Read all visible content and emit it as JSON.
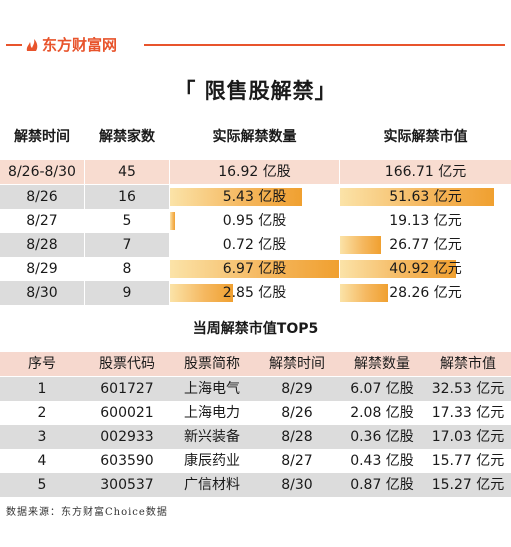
{
  "header": {
    "logo_text": "东方财富网",
    "brand_color": "#e8542c"
  },
  "title": "「 限售股解禁」",
  "table1": {
    "headers": [
      "解禁时间",
      "解禁家数",
      "实际解禁数量",
      "实际解禁市值"
    ],
    "summary": {
      "date": "8/26-8/30",
      "count": "45",
      "quantity": "16.92 亿股",
      "value": "166.71 亿元"
    },
    "rows": [
      {
        "date": "8/26",
        "count": "16",
        "quantity": "5.43 亿股",
        "quantity_level": 0.78,
        "value": "51.63 亿元",
        "value_level": 0.9
      },
      {
        "date": "8/27",
        "count": "5",
        "quantity": "0.95 亿股",
        "quantity_level": 0.03,
        "value": "19.13 亿元",
        "value_level": 0.0
      },
      {
        "date": "8/28",
        "count": "7",
        "quantity": "0.72 亿股",
        "quantity_level": 0.0,
        "value": "26.77 亿元",
        "value_level": 0.24
      },
      {
        "date": "8/29",
        "count": "8",
        "quantity": "6.97 亿股",
        "quantity_level": 1.0,
        "value": "40.92 亿元",
        "value_level": 0.68
      },
      {
        "date": "8/30",
        "count": "9",
        "quantity": "2.85 亿股",
        "quantity_level": 0.37,
        "value": "28.26 亿元",
        "value_level": 0.28
      }
    ]
  },
  "subtitle": "当周解禁市值TOP5",
  "table2": {
    "headers": [
      "序号",
      "股票代码",
      "股票简称",
      "解禁时间",
      "解禁数量",
      "解禁市值"
    ],
    "rows": [
      {
        "rank": "1",
        "code": "601727",
        "name": "上海电气",
        "date": "8/29",
        "quantity": "6.07 亿股",
        "value": "32.53 亿元"
      },
      {
        "rank": "2",
        "code": "600021",
        "name": "上海电力",
        "date": "8/26",
        "quantity": "2.08 亿股",
        "value": "17.33 亿元"
      },
      {
        "rank": "3",
        "code": "002933",
        "name": "新兴装备",
        "date": "8/28",
        "quantity": "0.36 亿股",
        "value": "17.03 亿元"
      },
      {
        "rank": "4",
        "code": "603590",
        "name": "康辰药业",
        "date": "8/27",
        "quantity": "0.43 亿股",
        "value": "15.77 亿元"
      },
      {
        "rank": "5",
        "code": "300537",
        "name": "广信材料",
        "date": "8/30",
        "quantity": "0.87 亿股",
        "value": "15.27 亿元"
      }
    ]
  },
  "source": "数据来源：东方财富Choice数据"
}
